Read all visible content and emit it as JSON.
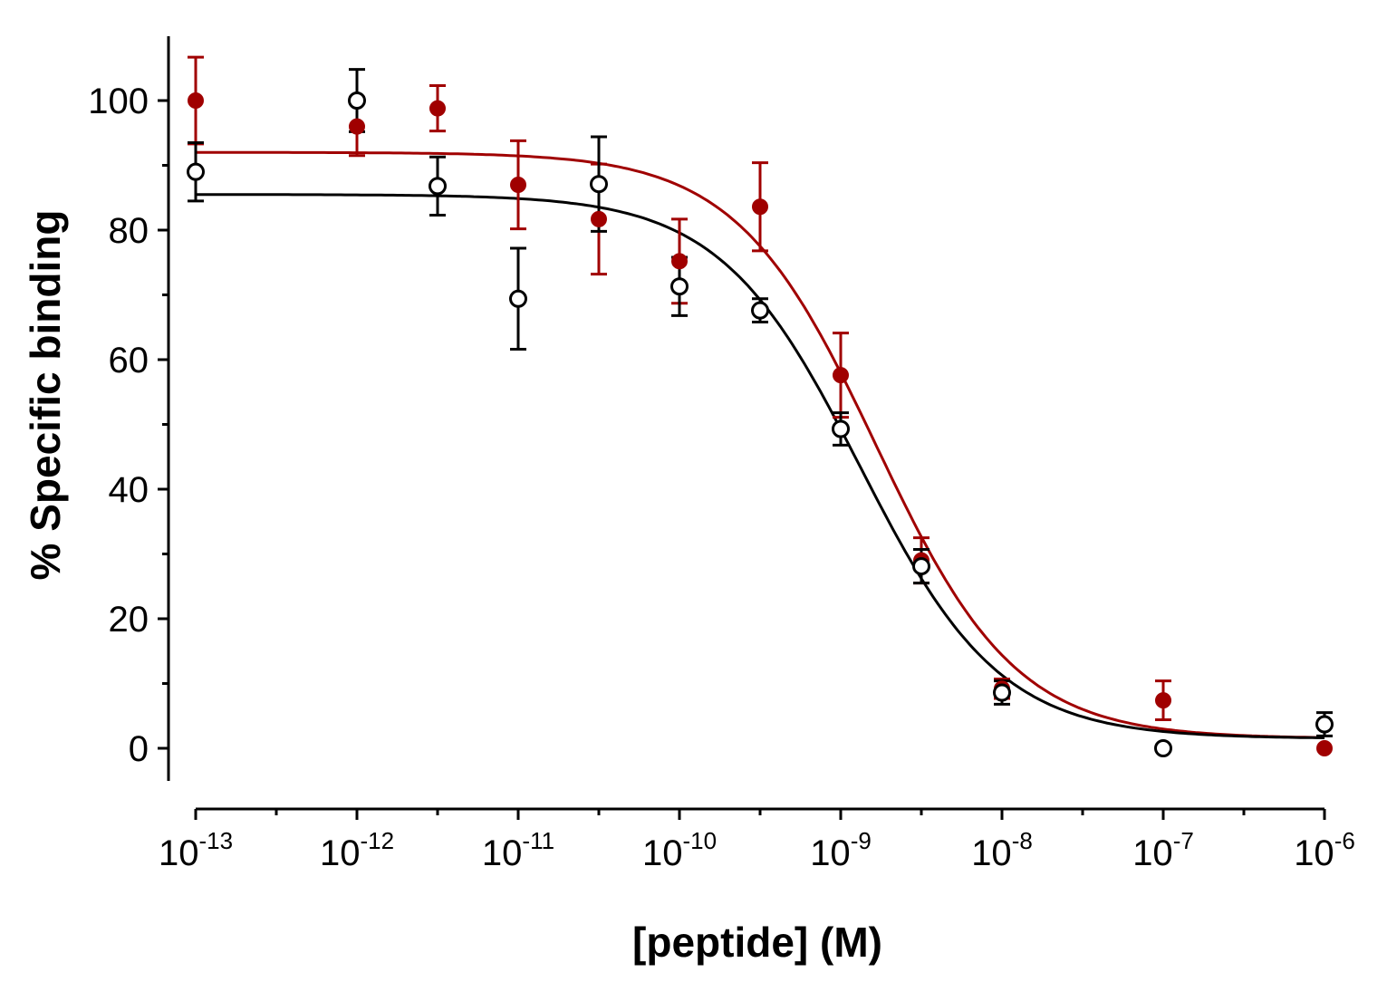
{
  "chart_data": {
    "type": "scatter",
    "title": "",
    "xlabel": "[peptide] (M)",
    "ylabel": "% Specific binding",
    "xscale": "log",
    "xlim_log10": [
      -13,
      -6
    ],
    "ylim": [
      -5,
      110
    ],
    "yticks": [
      {
        "value": 0,
        "label": "0"
      },
      {
        "value": 20,
        "label": "20"
      },
      {
        "value": 40,
        "label": "40"
      },
      {
        "value": 60,
        "label": "60"
      },
      {
        "value": 80,
        "label": "80"
      },
      {
        "value": 100,
        "label": "100"
      }
    ],
    "xticks": [
      {
        "exp": -13,
        "base": "10",
        "sup": "-13"
      },
      {
        "exp": -12,
        "base": "10",
        "sup": "-12"
      },
      {
        "exp": -11,
        "base": "10",
        "sup": "-11"
      },
      {
        "exp": -10,
        "base": "10",
        "sup": "-10"
      },
      {
        "exp": -9,
        "base": "10",
        "sup": "-9"
      },
      {
        "exp": -8,
        "base": "10",
        "sup": "-8"
      },
      {
        "exp": -7,
        "base": "10",
        "sup": "-7"
      },
      {
        "exp": -6,
        "base": "10",
        "sup": "-6"
      }
    ],
    "grid": false,
    "legend": "none",
    "series": [
      {
        "name": "filled-red",
        "color": "#a00000",
        "marker": "filled-circle",
        "points": [
          {
            "logx": -13,
            "y": 100,
            "err": 6.7
          },
          {
            "logx": -12,
            "y": 96,
            "err": 4.5
          },
          {
            "logx": -11.5,
            "y": 98.8,
            "err": 3.5
          },
          {
            "logx": -11,
            "y": 87,
            "err": 6.8
          },
          {
            "logx": -10.5,
            "y": 81.7,
            "err": 8.5
          },
          {
            "logx": -10,
            "y": 75.2,
            "err": 6.5
          },
          {
            "logx": -9.5,
            "y": 83.6,
            "err": 6.8
          },
          {
            "logx": -9,
            "y": 57.6,
            "err": 6.5
          },
          {
            "logx": -8.5,
            "y": 29,
            "err": 3.5
          },
          {
            "logx": -8,
            "y": 9.2,
            "err": 1.5
          },
          {
            "logx": -7,
            "y": 7.4,
            "err": 3.0
          },
          {
            "logx": -6,
            "y": 0,
            "err": 0
          }
        ],
        "fit": {
          "bottom": 1.5,
          "top": 92,
          "logIC50": -8.78,
          "hill": 1.0
        }
      },
      {
        "name": "open-black",
        "color": "#000000",
        "marker": "open-circle",
        "points": [
          {
            "logx": -13,
            "y": 89,
            "err": 4.5
          },
          {
            "logx": -12,
            "y": 100,
            "err": 4.8
          },
          {
            "logx": -11.5,
            "y": 86.8,
            "err": 4.5
          },
          {
            "logx": -11,
            "y": 69.4,
            "err": 7.8
          },
          {
            "logx": -10.5,
            "y": 87.1,
            "err": 7.3
          },
          {
            "logx": -10,
            "y": 71.3,
            "err": 4.5
          },
          {
            "logx": -9.5,
            "y": 67.6,
            "err": 1.8
          },
          {
            "logx": -9,
            "y": 49.3,
            "err": 2.5
          },
          {
            "logx": -8.5,
            "y": 28.1,
            "err": 2.6
          },
          {
            "logx": -8,
            "y": 8.6,
            "err": 1.8
          },
          {
            "logx": -7,
            "y": 0,
            "err": 0
          },
          {
            "logx": -6,
            "y": 3.7,
            "err": 1.8
          }
        ],
        "fit": {
          "bottom": 1.5,
          "top": 85.5,
          "logIC50": -8.88,
          "hill": 1.0
        }
      }
    ]
  }
}
